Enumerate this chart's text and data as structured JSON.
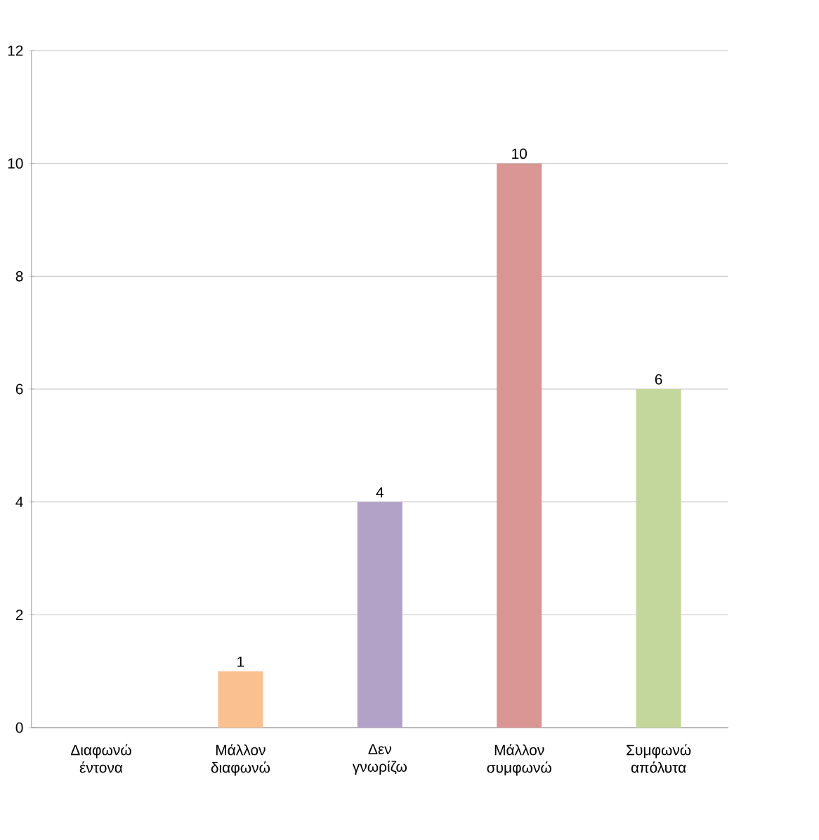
{
  "chart_data": {
    "type": "bar",
    "categories": [
      "Διαφωνώ έντονα",
      "Μάλλον διαφωνώ",
      "Δεν γνωρίζω",
      "Μάλλον συμφωνώ",
      "Συμφωνώ απόλυτα"
    ],
    "values": [
      0,
      1,
      4,
      10,
      6
    ],
    "colors": [
      "#95b3d7",
      "#fac090",
      "#b3a2c7",
      "#d99694",
      "#c3d69b"
    ],
    "value_labels": [
      null,
      "1",
      "4",
      "10",
      "6"
    ],
    "ylim": [
      0,
      12
    ],
    "yticks": [
      0,
      2,
      4,
      6,
      8,
      10,
      12
    ],
    "grid": "y"
  }
}
